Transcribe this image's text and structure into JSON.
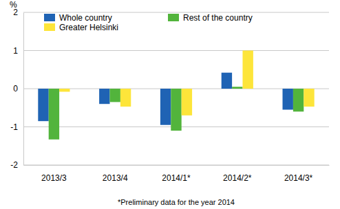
{
  "chart_data": {
    "type": "bar",
    "ylabel": "%",
    "footnote": "*Preliminary data for the year 2014",
    "categories": [
      "2013/3",
      "2013/4",
      "2014/1*",
      "2014/2*",
      "2014/3*"
    ],
    "series": [
      {
        "name": "Whole country",
        "color": "#1f63b4",
        "values": [
          -0.85,
          -0.4,
          -0.95,
          0.42,
          -0.55
        ]
      },
      {
        "name": "Rest of the country",
        "color": "#52b43c",
        "values": [
          -1.33,
          -0.35,
          -1.1,
          0.05,
          -0.6
        ]
      },
      {
        "name": "Greater Helsinki",
        "color": "#fde53a",
        "values": [
          -0.08,
          -0.47,
          -0.7,
          1.0,
          -0.47
        ]
      }
    ],
    "ylim": [
      -2,
      2
    ],
    "yticks": [
      -2,
      -1,
      0,
      1,
      2
    ],
    "grid": true,
    "legend": "top"
  }
}
